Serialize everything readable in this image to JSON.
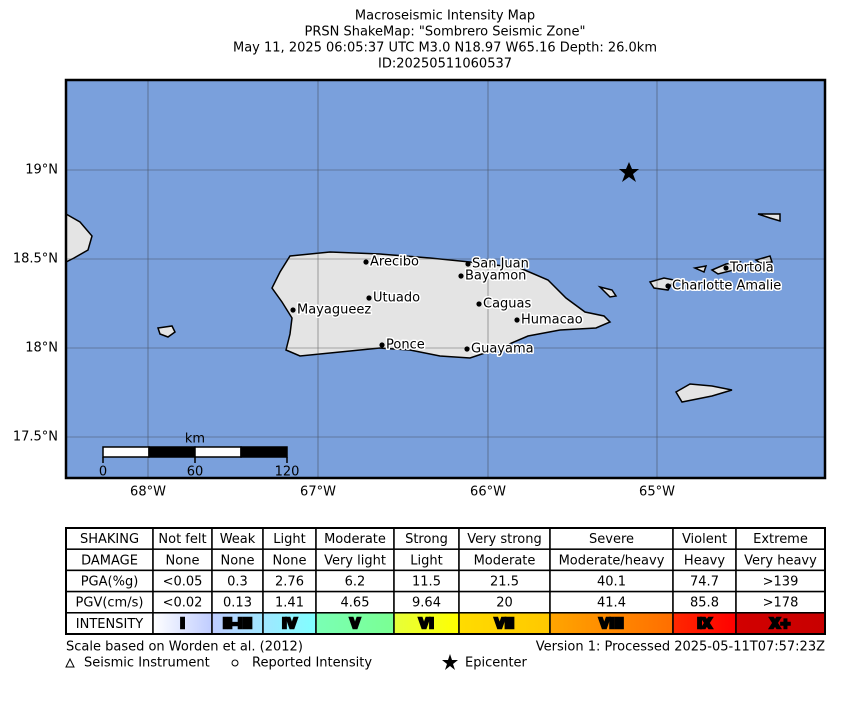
{
  "header": {
    "lines": [
      "Macroseismic Intensity Map",
      "PRSN ShakeMap: \"Sombrero Seismic Zone\"",
      "May 11, 2025 06:05:37 UTC M3.0 N18.97 W65.16 Depth: 26.0km",
      "ID:20250511060537"
    ]
  },
  "map": {
    "lat_labels": [
      "19°N",
      "18.5°N",
      "18°N",
      "17.5°N"
    ],
    "lon_labels": [
      "68°W",
      "67°W",
      "66°W",
      "65°W"
    ],
    "cities": [
      "Arecibo",
      "San Juan",
      "Bayamon",
      "Utuado",
      "Caguas",
      "Mayagueez",
      "Humacao",
      "Ponce",
      "Guayama",
      "Tortola",
      "Charlotte Amalie"
    ],
    "scale_bar": {
      "unit": "km",
      "labels": [
        "0",
        "60",
        "120"
      ]
    }
  },
  "table": {
    "rows": [
      [
        "SHAKING",
        "Not felt",
        "Weak",
        "Light",
        "Moderate",
        "Strong",
        "Very strong",
        "Severe",
        "Violent",
        "Extreme"
      ],
      [
        "DAMAGE",
        "None",
        "None",
        "None",
        "Very light",
        "Light",
        "Moderate",
        "Moderate/heavy",
        "Heavy",
        "Very heavy"
      ],
      [
        "PGA(%g)",
        "<0.05",
        "0.3",
        "2.76",
        "6.2",
        "11.5",
        "21.5",
        "40.1",
        "74.7",
        ">139"
      ],
      [
        "PGV(cm/s)",
        "<0.02",
        "0.13",
        "1.41",
        "4.65",
        "9.64",
        "20",
        "41.4",
        "85.8",
        ">178"
      ],
      [
        "INTENSITY",
        "I",
        "II-III",
        "IV",
        "V",
        "VI",
        "VII",
        "VIII",
        "IX",
        "X+"
      ]
    ]
  },
  "footer": {
    "note": "Scale based on Worden et al. (2012)",
    "version": "Version 1: Processed 2025-05-11T07:57:23Z",
    "legend": [
      "Seismic Instrument",
      "Reported Intensity",
      "Epicenter"
    ]
  }
}
